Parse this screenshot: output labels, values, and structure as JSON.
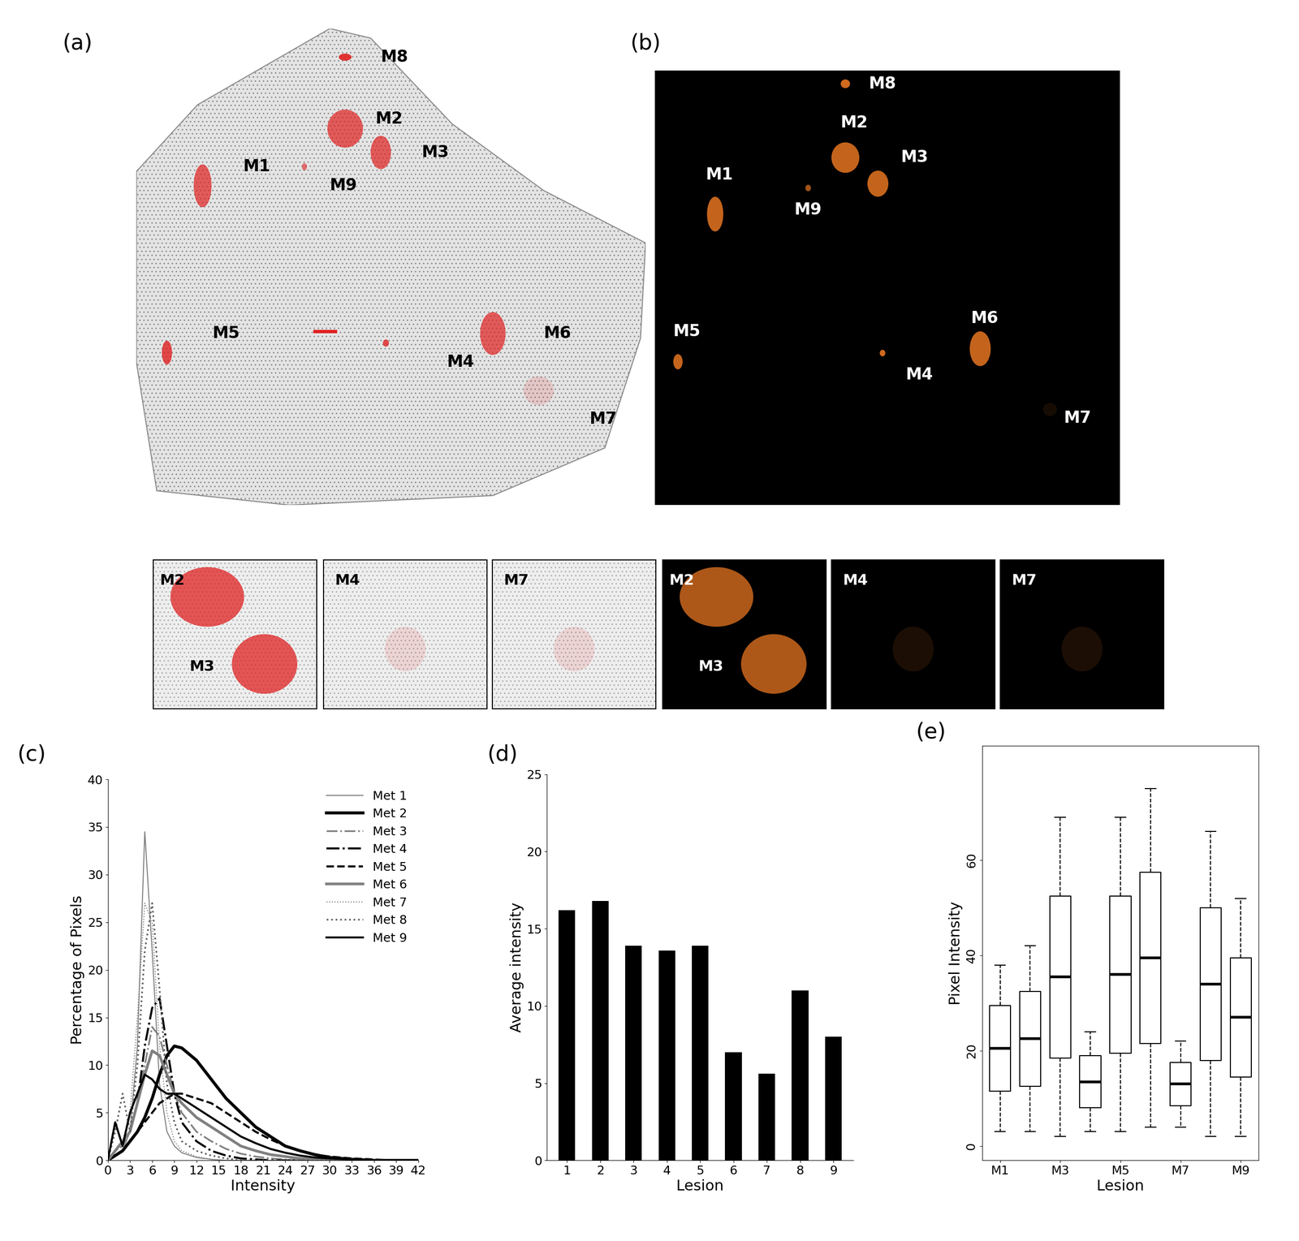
{
  "chart_data": [
    {
      "type": "line",
      "title": "(c)",
      "xlabel": "Intensity",
      "ylabel": "Percentage of Pixels",
      "x": [
        0,
        1,
        2,
        3,
        4,
        5,
        6,
        7,
        8,
        9,
        10,
        12,
        14,
        16,
        18,
        20,
        22,
        24,
        26,
        28,
        30,
        33,
        36,
        39,
        42
      ],
      "xlim": [
        0,
        42
      ],
      "ylim": [
        0,
        40
      ],
      "xticks": [
        0,
        3,
        6,
        9,
        12,
        15,
        18,
        21,
        24,
        27,
        30,
        33,
        36,
        39,
        42
      ],
      "yticks": [
        0,
        5,
        10,
        15,
        20,
        25,
        30,
        35,
        40
      ],
      "legend": "upper right",
      "series": [
        {
          "name": "Met 1",
          "color": "#808080",
          "line_style": "solid",
          "values": [
            0,
            0.5,
            1,
            3,
            12,
            34.5,
            22,
            8,
            3,
            1.5,
            0.8,
            0.3,
            0.1,
            0,
            0,
            0,
            0,
            0,
            0,
            0,
            0,
            0,
            0,
            0,
            0
          ]
        },
        {
          "name": "Met 2",
          "color": "#000000",
          "line_style": "solid",
          "values": [
            0,
            0.5,
            1,
            2,
            3,
            4.5,
            6.5,
            9,
            11,
            12,
            11.8,
            10.5,
            8.5,
            6.5,
            5,
            3.5,
            2.5,
            1.5,
            1,
            0.6,
            0.3,
            0.1,
            0,
            0,
            0
          ]
        },
        {
          "name": "Met 3",
          "color": "#808080",
          "line_style": "dashdot",
          "values": [
            0,
            1,
            1.5,
            3,
            6,
            10,
            14,
            13,
            10,
            7,
            5,
            3,
            2,
            1.2,
            0.7,
            0.4,
            0.2,
            0.1,
            0,
            0,
            0,
            0,
            0,
            0,
            0
          ]
        },
        {
          "name": "Met 4",
          "color": "#000000",
          "line_style": "dashdot",
          "values": [
            0,
            1,
            2,
            3,
            6,
            12,
            16,
            17,
            12,
            7,
            4,
            2,
            1,
            0.5,
            0.2,
            0.1,
            0,
            0,
            0,
            0,
            0,
            0,
            0,
            0,
            0
          ]
        },
        {
          "name": "Met 5",
          "color": "#000000",
          "line_style": "dashed",
          "values": [
            0,
            0.5,
            1,
            2,
            3,
            4,
            5,
            6,
            6.5,
            7,
            7,
            6.5,
            6,
            5,
            4,
            3,
            2.2,
            1.5,
            1,
            0.6,
            0.4,
            0.2,
            0.1,
            0,
            0
          ]
        },
        {
          "name": "Met 6",
          "color": "#808080",
          "line_style": "solid",
          "values": [
            0,
            1,
            2,
            3,
            6,
            9,
            11.5,
            11,
            9,
            7,
            6,
            4.5,
            3.5,
            2.5,
            1.5,
            1,
            0.6,
            0.4,
            0.2,
            0.1,
            0,
            0,
            0,
            0,
            0
          ]
        },
        {
          "name": "Met 7",
          "color": "#808080",
          "line_style": "dotted",
          "values": [
            0,
            1,
            2,
            5,
            15,
            27,
            25,
            12,
            5,
            2,
            1,
            0.4,
            0.1,
            0,
            0,
            0,
            0,
            0,
            0,
            0,
            0,
            0,
            0,
            0,
            0
          ]
        },
        {
          "name": "Met 8",
          "color": "#606060",
          "line_style": "dotted",
          "values": [
            0,
            3,
            7,
            3,
            10,
            22,
            27,
            18,
            8,
            4,
            2,
            1,
            0.5,
            0.2,
            0,
            0,
            0,
            0,
            0,
            0,
            0,
            0,
            0,
            0,
            0
          ]
        },
        {
          "name": "Met 9",
          "color": "#000000",
          "line_style": "solid",
          "values": [
            0,
            4,
            1.5,
            5,
            7,
            9,
            8.5,
            7.5,
            7,
            7,
            6.5,
            5.5,
            4.5,
            3.5,
            2.5,
            1.8,
            1.2,
            0.8,
            0.5,
            0.3,
            0.2,
            0.1,
            0,
            0,
            0
          ]
        }
      ]
    },
    {
      "type": "bar",
      "title": "(d)",
      "xlabel": "Lesion",
      "ylabel": "Average intensity",
      "categories": [
        "1",
        "2",
        "3",
        "4",
        "5",
        "6",
        "7",
        "8",
        "9"
      ],
      "values": [
        16.2,
        16.8,
        13.9,
        13.6,
        13.9,
        7.0,
        5.6,
        11.0,
        8.0
      ],
      "color": "#000000",
      "ylim": [
        0,
        25
      ],
      "yticks": [
        0,
        5,
        10,
        15,
        20,
        25
      ]
    },
    {
      "type": "box",
      "title": "(e)",
      "xlabel": "Lesion",
      "ylabel": "Pixel Intensity",
      "categories": [
        "M1",
        null,
        "M3",
        null,
        "M5",
        null,
        "M7",
        null,
        "M9"
      ],
      "color": "#000000",
      "ylim": [
        -3,
        84
      ],
      "yticks": [
        0,
        20,
        40,
        60
      ],
      "boxes": [
        {
          "whislo": 3,
          "q1": 11.5,
          "med": 20.5,
          "q3": 29.5,
          "whishi": 38
        },
        {
          "whislo": 3,
          "q1": 12.5,
          "med": 22.5,
          "q3": 32.5,
          "whishi": 42
        },
        {
          "whislo": 2,
          "q1": 18.5,
          "med": 35.5,
          "q3": 52.5,
          "whishi": 69
        },
        {
          "whislo": 3,
          "q1": 8,
          "med": 13.5,
          "q3": 19,
          "whishi": 24
        },
        {
          "whislo": 3,
          "q1": 19.5,
          "med": 36,
          "q3": 52.5,
          "whishi": 69
        },
        {
          "whislo": 4,
          "q1": 21.5,
          "med": 39.5,
          "q3": 57.5,
          "whishi": 75
        },
        {
          "whislo": 4,
          "q1": 8.5,
          "med": 13,
          "q3": 17.5,
          "whishi": 22
        },
        {
          "whislo": 2,
          "q1": 18,
          "med": 34,
          "q3": 50,
          "whishi": 66
        },
        {
          "whislo": 2,
          "q1": 14.5,
          "med": 27,
          "q3": 39.5,
          "whishi": 52
        }
      ]
    }
  ],
  "images": {
    "a": {
      "label": "(a)",
      "lesions": [
        "M8",
        "M2",
        "M3",
        "M1",
        "M9",
        "M5",
        "M4",
        "M6",
        "M7"
      ]
    },
    "b": {
      "label": "(b)",
      "lesions": [
        "M8",
        "M2",
        "M3",
        "M1",
        "M9",
        "M5",
        "M4",
        "M6",
        "M7"
      ]
    },
    "insets": [
      [
        "M2",
        "M3"
      ],
      [
        "M4"
      ],
      [
        "M7"
      ]
    ]
  }
}
